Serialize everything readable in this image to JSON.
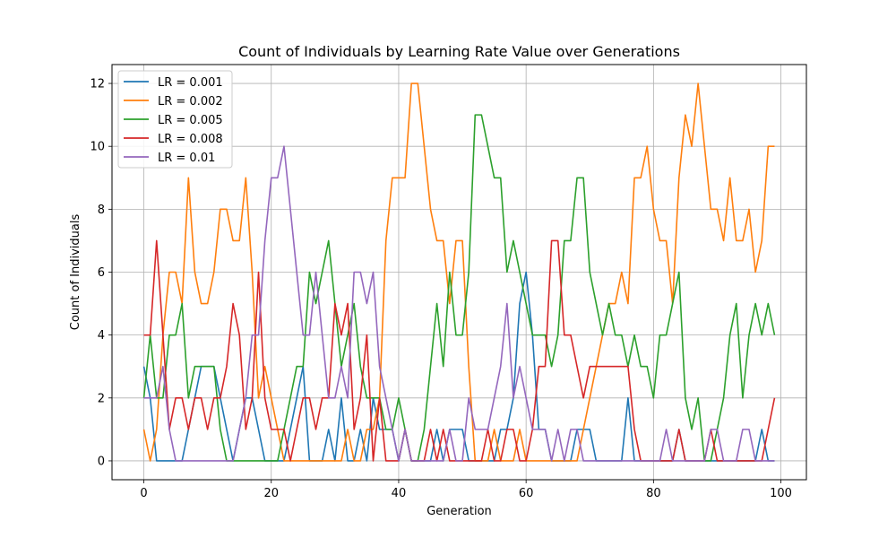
{
  "chart_data": {
    "type": "line",
    "title": "Count of Individuals by Learning Rate Value over Generations",
    "xlabel": "Generation",
    "ylabel": "Count of Individuals",
    "xlim": [
      -5,
      104
    ],
    "ylim": [
      -0.6,
      12.6
    ],
    "xticks": [
      0,
      20,
      40,
      60,
      80,
      100
    ],
    "yticks": [
      0,
      2,
      4,
      6,
      8,
      10,
      12
    ],
    "grid": true,
    "legend_position": "top-left",
    "series": [
      {
        "name": "LR = 0.001",
        "color": "#1f77b4",
        "values": [
          3,
          2,
          0,
          0,
          0,
          0,
          0,
          1,
          2,
          3,
          3,
          3,
          2,
          1,
          0,
          1,
          2,
          2,
          1,
          0,
          0,
          0,
          0,
          1,
          2,
          3,
          0,
          0,
          0,
          1,
          0,
          2,
          0,
          0,
          1,
          0,
          2,
          1,
          1,
          1,
          0,
          1,
          0,
          0,
          0,
          0,
          1,
          0,
          1,
          1,
          1,
          0,
          0,
          0,
          0,
          0,
          1,
          1,
          2,
          5,
          6,
          4,
          1,
          1,
          0,
          0,
          0,
          0,
          1,
          1,
          1,
          0,
          0,
          0,
          0,
          0,
          2,
          0,
          0,
          0,
          0,
          0,
          0,
          0,
          1,
          0,
          0,
          0,
          0,
          0,
          0,
          0,
          0,
          0,
          0,
          0,
          0,
          1,
          0,
          0
        ]
      },
      {
        "name": "LR = 0.002",
        "color": "#ff7f0e",
        "values": [
          1,
          0,
          1,
          4,
          6,
          6,
          5,
          9,
          6,
          5,
          5,
          6,
          8,
          8,
          7,
          7,
          9,
          6,
          2,
          3,
          2,
          1,
          0,
          0,
          0,
          0,
          0,
          0,
          0,
          0,
          0,
          0,
          1,
          0,
          0,
          1,
          1,
          2,
          7,
          9,
          9,
          9,
          12,
          12,
          10,
          8,
          7,
          7,
          5,
          7,
          7,
          3,
          0,
          0,
          0,
          1,
          0,
          0,
          0,
          1,
          0,
          0,
          0,
          0,
          0,
          0,
          0,
          0,
          0,
          1,
          2,
          3,
          4,
          5,
          5,
          6,
          5,
          9,
          9,
          10,
          8,
          7,
          7,
          5,
          9,
          11,
          10,
          12,
          10,
          8,
          8,
          7,
          9,
          7,
          7,
          8,
          6,
          7,
          10,
          10
        ]
      },
      {
        "name": "LR = 0.005",
        "color": "#2ca02c",
        "values": [
          2,
          4,
          2,
          2,
          4,
          4,
          5,
          2,
          3,
          3,
          3,
          3,
          1,
          0,
          0,
          0,
          0,
          0,
          0,
          0,
          0,
          0,
          1,
          2,
          3,
          3,
          6,
          5,
          6,
          7,
          5,
          3,
          4,
          5,
          3,
          2,
          2,
          2,
          1,
          1,
          2,
          1,
          0,
          0,
          1,
          3,
          5,
          3,
          6,
          4,
          4,
          6,
          11,
          11,
          10,
          9,
          9,
          6,
          7,
          6,
          5,
          4,
          4,
          4,
          3,
          4,
          7,
          7,
          9,
          9,
          6,
          5,
          4,
          5,
          4,
          4,
          3,
          4,
          3,
          3,
          2,
          4,
          4,
          5,
          6,
          2,
          1,
          2,
          0,
          0,
          1,
          2,
          4,
          5,
          2,
          4,
          5,
          4,
          5,
          4
        ]
      },
      {
        "name": "LR = 0.008",
        "color": "#d62728",
        "values": [
          4,
          4,
          7,
          4,
          1,
          2,
          2,
          1,
          2,
          2,
          1,
          2,
          2,
          3,
          5,
          4,
          1,
          2,
          6,
          2,
          1,
          1,
          1,
          0,
          1,
          2,
          2,
          1,
          2,
          2,
          5,
          4,
          5,
          1,
          2,
          4,
          0,
          2,
          0,
          0,
          0,
          1,
          0,
          0,
          0,
          1,
          0,
          1,
          0,
          0,
          0,
          0,
          0,
          0,
          1,
          0,
          0,
          1,
          1,
          0,
          0,
          1,
          3,
          3,
          7,
          7,
          4,
          4,
          3,
          2,
          3,
          3,
          3,
          3,
          3,
          3,
          3,
          1,
          0,
          0,
          0,
          0,
          0,
          0,
          1,
          0,
          0,
          0,
          0,
          1,
          0,
          0,
          0,
          0,
          0,
          0,
          0,
          0,
          1,
          2
        ]
      },
      {
        "name": "LR = 0.01",
        "color": "#9467bd",
        "values": [
          2,
          2,
          2,
          3,
          1,
          0,
          0,
          0,
          0,
          0,
          0,
          0,
          0,
          0,
          0,
          1,
          2,
          4,
          4,
          7,
          9,
          9,
          10,
          8,
          6,
          4,
          4,
          6,
          4,
          2,
          2,
          3,
          2,
          6,
          6,
          5,
          6,
          3,
          2,
          1,
          0,
          1,
          0,
          0,
          0,
          0,
          0,
          0,
          1,
          0,
          0,
          2,
          1,
          1,
          1,
          2,
          3,
          5,
          2,
          3,
          2,
          1,
          1,
          1,
          0,
          1,
          0,
          1,
          1,
          0,
          0,
          0,
          0,
          0,
          0,
          0,
          0,
          0,
          0,
          0,
          0,
          0,
          1,
          0,
          0,
          0,
          0,
          0,
          0,
          1,
          1,
          0,
          0,
          0,
          1,
          1,
          0,
          0,
          0,
          0
        ]
      }
    ]
  }
}
